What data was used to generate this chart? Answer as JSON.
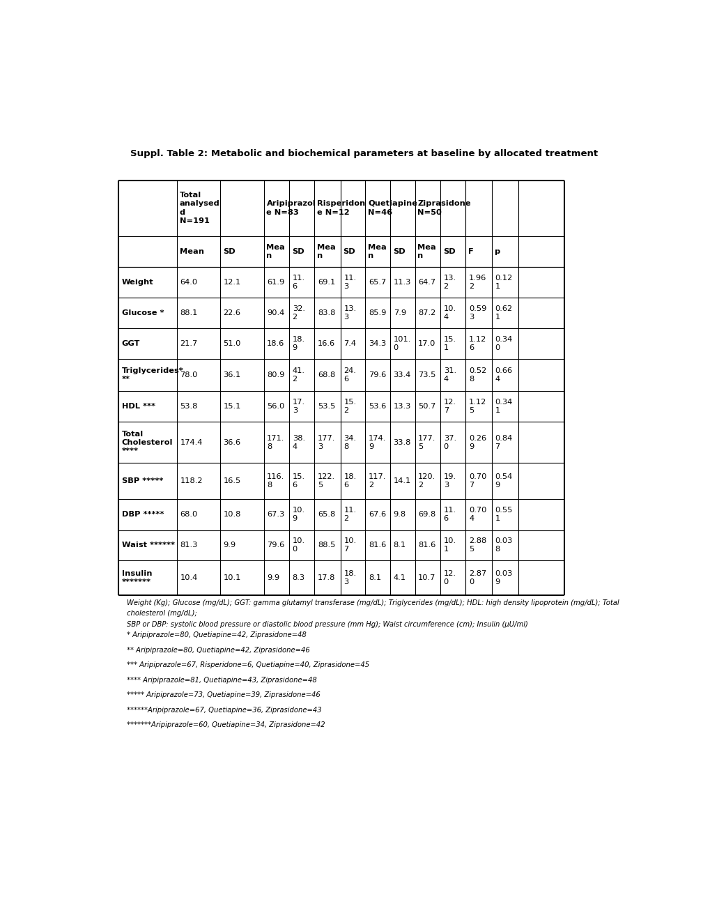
{
  "title": "Suppl. Table 2: Metabolic and biochemical parameters at baseline by allocated treatment",
  "rows": [
    {
      "label": "Weight",
      "tot_mean": "64.0",
      "tot_sd": "12.1",
      "ari_mean": "61.9",
      "ari_sd": "11.\n6",
      "ris_mean": "69.1",
      "ris_sd": "11.\n3",
      "que_mean": "65.7",
      "que_sd": "11.3",
      "zip_mean": "64.7",
      "zip_sd": "13.\n2",
      "F": "1.96\n2",
      "p": "0.12\n1"
    },
    {
      "label": "Glucose *",
      "tot_mean": "88.1",
      "tot_sd": "22.6",
      "ari_mean": "90.4",
      "ari_sd": "32.\n2",
      "ris_mean": "83.8",
      "ris_sd": "13.\n3",
      "que_mean": "85.9",
      "que_sd": "7.9",
      "zip_mean": "87.2",
      "zip_sd": "10.\n4",
      "F": "0.59\n3",
      "p": "0.62\n1"
    },
    {
      "label": "GGT",
      "tot_mean": "21.7",
      "tot_sd": "51.0",
      "ari_mean": "18.6",
      "ari_sd": "18.\n9",
      "ris_mean": "16.6",
      "ris_sd": "7.4",
      "que_mean": "34.3",
      "que_sd": "101.\n0",
      "zip_mean": "17.0",
      "zip_sd": "15.\n1",
      "F": "1.12\n6",
      "p": "0.34\n0"
    },
    {
      "label": "Triglycerides*\n**",
      "tot_mean": "78.0",
      "tot_sd": "36.1",
      "ari_mean": "80.9",
      "ari_sd": "41.\n2",
      "ris_mean": "68.8",
      "ris_sd": "24.\n6",
      "que_mean": "79.6",
      "que_sd": "33.4",
      "zip_mean": "73.5",
      "zip_sd": "31.\n4",
      "F": "0.52\n8",
      "p": "0.66\n4"
    },
    {
      "label": "HDL ***",
      "tot_mean": "53.8",
      "tot_sd": "15.1",
      "ari_mean": "56.0",
      "ari_sd": "17.\n3",
      "ris_mean": "53.5",
      "ris_sd": "15.\n2",
      "que_mean": "53.6",
      "que_sd": "13.3",
      "zip_mean": "50.7",
      "zip_sd": "12.\n7",
      "F": "1.12\n5",
      "p": "0.34\n1"
    },
    {
      "label": "Total\nCholesterol\n****",
      "tot_mean": "174.4",
      "tot_sd": "36.6",
      "ari_mean": "171.\n8",
      "ari_sd": "38.\n4",
      "ris_mean": "177.\n3",
      "ris_sd": "34.\n8",
      "que_mean": "174.\n9",
      "que_sd": "33.8",
      "zip_mean": "177.\n5",
      "zip_sd": "37.\n0",
      "F": "0.26\n9",
      "p": "0.84\n7"
    },
    {
      "label": "SBP *****",
      "tot_mean": "118.2",
      "tot_sd": "16.5",
      "ari_mean": "116.\n8",
      "ari_sd": "15.\n6",
      "ris_mean": "122.\n5",
      "ris_sd": "18.\n6",
      "que_mean": "117.\n2",
      "que_sd": "14.1",
      "zip_mean": "120.\n2",
      "zip_sd": "19.\n3",
      "F": "0.70\n7",
      "p": "0.54\n9"
    },
    {
      "label": "DBP *****",
      "tot_mean": "68.0",
      "tot_sd": "10.8",
      "ari_mean": "67.3",
      "ari_sd": "10.\n9",
      "ris_mean": "65.8",
      "ris_sd": "11.\n2",
      "que_mean": "67.6",
      "que_sd": "9.8",
      "zip_mean": "69.8",
      "zip_sd": "11.\n6",
      "F": "0.70\n4",
      "p": "0.55\n1"
    },
    {
      "label": "Waist ******",
      "tot_mean": "81.3",
      "tot_sd": "9.9",
      "ari_mean": "79.6",
      "ari_sd": "10.\n0",
      "ris_mean": "88.5",
      "ris_sd": "10.\n7",
      "que_mean": "81.6",
      "que_sd": "8.1",
      "zip_mean": "81.6",
      "zip_sd": "10.\n1",
      "F": "2.88\n5",
      "p": "0.03\n8"
    },
    {
      "label": "Insulin\n*******",
      "tot_mean": "10.4",
      "tot_sd": "10.1",
      "ari_mean": "9.9",
      "ari_sd": "8.3",
      "ris_mean": "17.8",
      "ris_sd": "18.\n3",
      "que_mean": "8.1",
      "que_sd": "4.1",
      "zip_mean": "10.7",
      "zip_sd": "12.\n0",
      "F": "2.87\n0",
      "p": "0.03\n9"
    }
  ],
  "footnote1": "Weight (Kg); Glucose (mg/dL); GGT: gamma glutamyl transferase (mg/dL); Triglycerides (mg/dL); HDL: high density lipoprotein (mg/dL); Total",
  "footnote1b": "cholesterol (mg/dL);",
  "footnote2": "SBP or DBP: systolic blood pressure or diastolic blood pressure (mm Hg); Waist circumference (cm); Insulin (μU/ml)",
  "footnote3": "* Aripiprazole=80, Quetiapine=42, Ziprasidone=48",
  "footnote4": "** Aripiprazole=80, Quetiapine=42, Ziprasidone=46",
  "footnote5": "*** Aripiprazole=67, Risperidone=6, Quetiapine=40, Ziprasidone=45",
  "footnote6": "**** Aripiprazole=81, Quetiapine=43, Ziprasidone=48",
  "footnote7": "***** Aripiprazole=73, Quetiapine=39, Ziprasidone=46",
  "footnote8": "******Aripiprazole=67, Quetiapine=36, Ziprasidone=43",
  "footnote9": "*******Aripiprazole=60, Quetiapine=34, Ziprasidone=42",
  "col_h1": [
    "",
    "Total\nanalysed\nd\nN=191",
    "Aripiprazol\ne N=83",
    "Risperidon\ne N=12",
    "Quetiapine\nN=46",
    "Ziprasidone\nN=50",
    "",
    ""
  ],
  "col_h2": [
    "",
    "Mean",
    "SD",
    "Mea\nn",
    "SD",
    "Mea\nn",
    "SD",
    "Mea\nn",
    "SD",
    "Mea\nn",
    "SD",
    "F",
    "p"
  ]
}
